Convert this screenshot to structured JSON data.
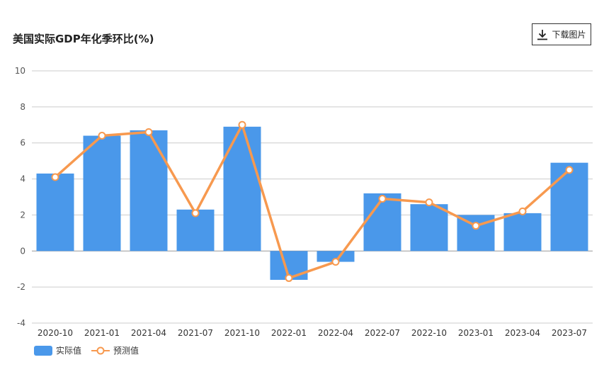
{
  "title": "美国实际GDP年化季环比(%)",
  "download_label": "下载图片",
  "colors": {
    "bar": "#4a98ea",
    "line": "#f7994f",
    "grid": "#cccccc",
    "axis_text": "#555555"
  },
  "chart_data": {
    "type": "bar",
    "title": "美国实际GDP年化季环比(%)",
    "categories": [
      "2020-10",
      "2021-01",
      "2021-04",
      "2021-07",
      "2021-10",
      "2022-01",
      "2022-04",
      "2022-07",
      "2022-10",
      "2023-01",
      "2023-04",
      "2023-07"
    ],
    "series": [
      {
        "name": "实际值",
        "type": "bar",
        "values": [
          4.3,
          6.4,
          6.7,
          2.3,
          6.9,
          -1.6,
          -0.6,
          3.2,
          2.6,
          2.0,
          2.1,
          4.9
        ]
      },
      {
        "name": "预测值",
        "type": "line",
        "values": [
          4.1,
          6.4,
          6.6,
          2.1,
          7.0,
          -1.5,
          -0.6,
          2.9,
          2.7,
          1.4,
          2.2,
          4.5
        ]
      }
    ],
    "y_ticks": [
      "10",
      "8",
      "6",
      "4",
      "2",
      "0",
      "-2",
      "-4"
    ],
    "ylim": [
      -4,
      10
    ],
    "grid": true,
    "legend_position": "bottom-left"
  },
  "legend": {
    "actual": "实际值",
    "forecast": "预测值"
  }
}
